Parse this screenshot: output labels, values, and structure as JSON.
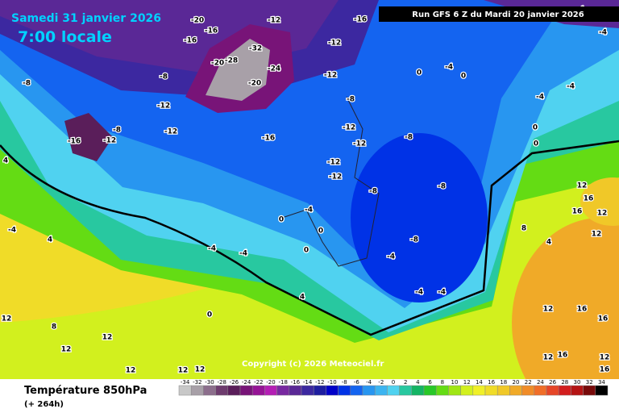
{
  "header": {
    "date": "Samedi 31 janvier 2026",
    "time": "7:00 locale",
    "run": "Run GFS 6 Z du Mardi 20 janvier 2026"
  },
  "footer": {
    "title": "Température 850hPa",
    "lead": "(+ 264h)",
    "copyright": "Copyright (c) 2026 Meteociel.fr"
  },
  "legend": {
    "values": [
      -34,
      -32,
      -30,
      -28,
      -26,
      -24,
      -22,
      -20,
      -18,
      -16,
      -14,
      -12,
      -10,
      -8,
      -6,
      -4,
      -2,
      0,
      2,
      4,
      6,
      8,
      10,
      12,
      14,
      16,
      18,
      20,
      22,
      24,
      26,
      28,
      30,
      32,
      34
    ],
    "colors": [
      "#c8c8c8",
      "#a8a0a8",
      "#8c6e8c",
      "#6e3c6e",
      "#5a1e5a",
      "#781478",
      "#961496",
      "#b41eb4",
      "#7828a0",
      "#5a2896",
      "#3c28a0",
      "#1e1ea0",
      "#0000c8",
      "#0032e6",
      "#1464f0",
      "#2896f0",
      "#3cb4f0",
      "#50d2f0",
      "#28c8a0",
      "#14b464",
      "#28c828",
      "#64dc14",
      "#a0e614",
      "#d2f01e",
      "#f0f028",
      "#f0dc28",
      "#f0c828",
      "#f0aa28",
      "#f08c28",
      "#f06e28",
      "#e64628",
      "#d21e1e",
      "#b41414",
      "#780a0a",
      "#000000"
    ]
  },
  "contour_labels": [
    -20,
    -16,
    -12,
    -16,
    -16,
    -12,
    -8,
    -8,
    -12,
    -20,
    -32,
    -28,
    -24,
    -20,
    -12,
    -8,
    -12,
    -12,
    -12,
    -12,
    -8,
    -8,
    -8,
    -8,
    -4,
    0,
    0,
    -4,
    -4,
    0,
    0,
    -16,
    -12,
    -8,
    -12,
    -16,
    4,
    -4,
    4,
    -4,
    -4,
    0,
    -4,
    0,
    0,
    -4,
    -4,
    -4,
    4,
    0,
    12,
    8,
    12,
    12,
    12,
    12,
    12,
    8,
    4,
    12,
    16,
    16,
    12,
    12,
    12,
    16,
    16,
    16,
    16,
    12,
    12,
    -4,
    -4
  ]
}
